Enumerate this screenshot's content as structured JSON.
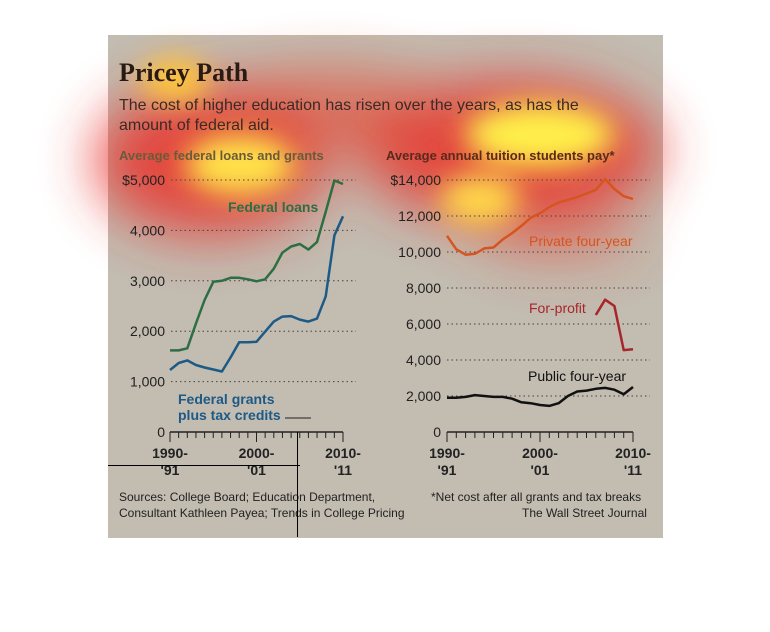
{
  "header": {
    "title": "Pricey Path",
    "subtitle": "The cost of higher education has risen over the years, as has the amount of federal aid."
  },
  "footer": {
    "sources": "Sources: College Board; Education Department,",
    "sources2": "Consultant Kathleen Payea; Trends in College Pricing",
    "note": "*Net cost after all grants and tax breaks",
    "credit": "The Wall Street Journal"
  },
  "colors": {
    "loans": "#2d6e44",
    "grants": "#1d5a86",
    "private": "#d8541e",
    "forprofit": "#a8262a",
    "public": "#111111",
    "background": "#c2bcb1"
  },
  "chart_data": [
    {
      "type": "line",
      "title": "Average federal loans and grants",
      "x_tick_labels": [
        [
          "1990-",
          "'91"
        ],
        [
          "2000-",
          "'01"
        ],
        [
          "2010-",
          "'11"
        ]
      ],
      "x_tick_values": [
        1990,
        2000,
        2010
      ],
      "ylim": [
        0,
        5000
      ],
      "y_ticks": [
        0,
        1000,
        2000,
        3000,
        4000,
        5000
      ],
      "y_tick_labels": [
        "0",
        "1,000",
        "2,000",
        "3,000",
        "4,000",
        "$5,000"
      ],
      "series": [
        {
          "name": "Federal loans",
          "x": [
            1990,
            1991,
            1992,
            1993,
            1994,
            1995,
            1996,
            1997,
            1998,
            1999,
            2000,
            2001,
            2002,
            2003,
            2004,
            2005,
            2006,
            2007,
            2008,
            2009,
            2010
          ],
          "values": [
            1620,
            1620,
            1660,
            2150,
            2620,
            2980,
            3000,
            3060,
            3060,
            3030,
            2990,
            3030,
            3240,
            3560,
            3680,
            3730,
            3620,
            3770,
            4370,
            4990,
            4920
          ]
        },
        {
          "name": "Federal grants plus tax credits",
          "name_lines": [
            "Federal grants",
            "plus tax credits"
          ],
          "x": [
            1990,
            1991,
            1992,
            1993,
            1994,
            1995,
            1996,
            1997,
            1998,
            1999,
            2000,
            2001,
            2002,
            2003,
            2004,
            2005,
            2006,
            2007,
            2008,
            2009,
            2010
          ],
          "values": [
            1230,
            1370,
            1420,
            1330,
            1280,
            1240,
            1200,
            1480,
            1780,
            1780,
            1790,
            1990,
            2190,
            2290,
            2300,
            2230,
            2190,
            2250,
            2690,
            3900,
            4280
          ]
        }
      ]
    },
    {
      "type": "line",
      "title": "Average annual tuition students pay*",
      "x_tick_labels": [
        [
          "1990-",
          "'91"
        ],
        [
          "2000-",
          "'01"
        ],
        [
          "2010-",
          "'11"
        ]
      ],
      "x_tick_values": [
        1990,
        2000,
        2010
      ],
      "ylim": [
        0,
        14000
      ],
      "y_ticks": [
        0,
        2000,
        4000,
        6000,
        8000,
        10000,
        12000,
        14000
      ],
      "y_tick_labels": [
        "0",
        "2,000",
        "4,000",
        "6,000",
        "8,000",
        "10,000",
        "12,000",
        "$14,000"
      ],
      "series": [
        {
          "name": "Private four-year",
          "x": [
            1990,
            1991,
            1992,
            1993,
            1994,
            1995,
            1996,
            1997,
            1998,
            1999,
            2000,
            2001,
            2002,
            2003,
            2004,
            2005,
            2006,
            2007,
            2008,
            2009,
            2010
          ],
          "values": [
            10900,
            10150,
            9850,
            9900,
            10200,
            10250,
            10700,
            11050,
            11450,
            11900,
            12150,
            12500,
            12750,
            12900,
            13050,
            13250,
            13450,
            14050,
            13500,
            13100,
            12950
          ]
        },
        {
          "name": "For-profit",
          "x": [
            2006,
            2007,
            2008,
            2009,
            2010
          ],
          "values": [
            6500,
            7350,
            7000,
            4550,
            4600
          ]
        },
        {
          "name": "Public four-year",
          "x": [
            1990,
            1991,
            1992,
            1993,
            1994,
            1995,
            1996,
            1997,
            1998,
            1999,
            2000,
            2001,
            2002,
            2003,
            2004,
            2005,
            2006,
            2007,
            2008,
            2009,
            2010
          ],
          "values": [
            1900,
            1900,
            1950,
            2050,
            2000,
            1950,
            1950,
            1850,
            1650,
            1600,
            1500,
            1450,
            1600,
            2000,
            2250,
            2300,
            2400,
            2450,
            2350,
            2100,
            2500
          ]
        }
      ]
    }
  ]
}
